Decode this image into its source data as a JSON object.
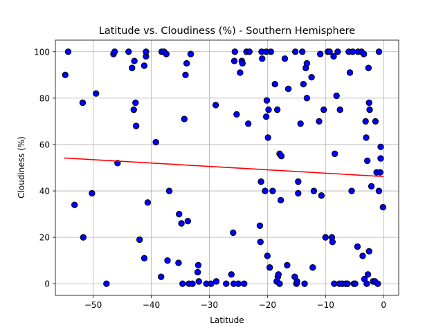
{
  "chart_data": {
    "type": "scatter",
    "title": "Latitude vs. Cloudiness (%) - Southern Hemisphere",
    "xlabel": "Latitude",
    "ylabel": "Cloudiness (%)",
    "xlim": [
      -56.5,
      2.6
    ],
    "ylim": [
      -5,
      105
    ],
    "xticks": [
      -50,
      -40,
      -30,
      -20,
      -10,
      0
    ],
    "yticks": [
      0,
      20,
      40,
      60,
      80,
      100
    ],
    "xtick_labels": [
      "−50",
      "−40",
      "−30",
      "−20",
      "−10",
      "0"
    ],
    "ytick_labels": [
      "0",
      "20",
      "40",
      "60",
      "80",
      "100"
    ],
    "grid": true,
    "colors": {
      "point_fill": "#0000ff",
      "point_edge": "#000000",
      "regression": "#ff0000"
    },
    "series": [
      {
        "points": [
          [
            -54.8,
            90
          ],
          [
            -54.3,
            100
          ],
          [
            -53.2,
            34
          ],
          [
            -51.8,
            78
          ],
          [
            -51.7,
            20
          ],
          [
            -50.2,
            39
          ],
          [
            -49.5,
            82
          ],
          [
            -47.7,
            0
          ],
          [
            -46.5,
            99
          ],
          [
            -46.3,
            100
          ],
          [
            -45.8,
            52
          ],
          [
            -43.9,
            100
          ],
          [
            -43.3,
            93
          ],
          [
            -43.0,
            75
          ],
          [
            -42.9,
            96
          ],
          [
            -42.7,
            78
          ],
          [
            -42.6,
            68
          ],
          [
            -42.0,
            19
          ],
          [
            -41.2,
            94
          ],
          [
            -41.2,
            11
          ],
          [
            -40.9,
            98
          ],
          [
            -40.9,
            100
          ],
          [
            -40.6,
            35
          ],
          [
            -39.2,
            61
          ],
          [
            -38.3,
            3
          ],
          [
            -38.2,
            100
          ],
          [
            -37.8,
            100
          ],
          [
            -37.4,
            99
          ],
          [
            -37.2,
            10
          ],
          [
            -36.9,
            40
          ],
          [
            -35.3,
            9
          ],
          [
            -35.2,
            30
          ],
          [
            -34.8,
            26
          ],
          [
            -34.6,
            0
          ],
          [
            -34.3,
            71
          ],
          [
            -34.1,
            90
          ],
          [
            -33.9,
            95
          ],
          [
            -33.7,
            27
          ],
          [
            -33.5,
            0
          ],
          [
            -33.2,
            99
          ],
          [
            -32.9,
            0
          ],
          [
            -32.0,
            5
          ],
          [
            -31.9,
            8
          ],
          [
            -31.8,
            1
          ],
          [
            -30.5,
            0
          ],
          [
            -29.7,
            0
          ],
          [
            -28.9,
            77
          ],
          [
            -28.8,
            1
          ],
          [
            -27.1,
            0
          ],
          [
            -26.2,
            4
          ],
          [
            -25.9,
            22
          ],
          [
            -25.8,
            0
          ],
          [
            -25.7,
            96
          ],
          [
            -25.6,
            100
          ],
          [
            -25.3,
            73
          ],
          [
            -25.0,
            0
          ],
          [
            -24.7,
            91
          ],
          [
            -24.4,
            96
          ],
          [
            -24.3,
            95
          ],
          [
            -24.0,
            0
          ],
          [
            -23.6,
            100
          ],
          [
            -23.3,
            69
          ],
          [
            -23.1,
            100
          ],
          [
            -21.3,
            25
          ],
          [
            -21.2,
            18
          ],
          [
            -21.1,
            44
          ],
          [
            -21.0,
            100
          ],
          [
            -20.9,
            97
          ],
          [
            -20.4,
            40
          ],
          [
            -20.2,
            100
          ],
          [
            -20.2,
            72
          ],
          [
            -20.1,
            79
          ],
          [
            -20.0,
            12
          ],
          [
            -19.9,
            63
          ],
          [
            -19.8,
            75
          ],
          [
            -19.6,
            7
          ],
          [
            -19.4,
            100
          ],
          [
            -19.1,
            40
          ],
          [
            -18.7,
            86
          ],
          [
            -18.4,
            1
          ],
          [
            -18.3,
            75
          ],
          [
            -18.2,
            3
          ],
          [
            -18.1,
            4
          ],
          [
            -17.9,
            56
          ],
          [
            -17.9,
            0
          ],
          [
            -17.7,
            36
          ],
          [
            -17.6,
            55
          ],
          [
            -17.0,
            97
          ],
          [
            -16.6,
            8
          ],
          [
            -16.4,
            84
          ],
          [
            -15.3,
            3
          ],
          [
            -15.2,
            100
          ],
          [
            -15.0,
            0
          ],
          [
            -14.9,
            1
          ],
          [
            -14.7,
            39
          ],
          [
            -14.7,
            44
          ],
          [
            -14.3,
            69
          ],
          [
            -14.0,
            100
          ],
          [
            -13.8,
            86
          ],
          [
            -13.6,
            0
          ],
          [
            -13.4,
            93
          ],
          [
            -13.2,
            95
          ],
          [
            -13.2,
            80
          ],
          [
            -12.4,
            89
          ],
          [
            -12.2,
            7
          ],
          [
            -12.0,
            40
          ],
          [
            -11.1,
            70
          ],
          [
            -10.9,
            99
          ],
          [
            -10.7,
            38
          ],
          [
            -10.3,
            75
          ],
          [
            -10.0,
            20
          ],
          [
            -9.6,
            100
          ],
          [
            -9.3,
            100
          ],
          [
            -8.9,
            20
          ],
          [
            -8.8,
            18
          ],
          [
            -8.6,
            98
          ],
          [
            -8.5,
            0
          ],
          [
            -8.4,
            56
          ],
          [
            -8.1,
            81
          ],
          [
            -7.9,
            100
          ],
          [
            -7.6,
            0
          ],
          [
            -7.5,
            75
          ],
          [
            -7.1,
            0
          ],
          [
            -6.5,
            0
          ],
          [
            -6.2,
            0
          ],
          [
            -6.0,
            100
          ],
          [
            -5.8,
            91
          ],
          [
            -5.5,
            40
          ],
          [
            -5.3,
            100
          ],
          [
            -5.1,
            0
          ],
          [
            -4.9,
            0
          ],
          [
            -4.5,
            16
          ],
          [
            -4.4,
            100
          ],
          [
            -3.8,
            100
          ],
          [
            -3.6,
            12
          ],
          [
            -3.4,
            99
          ],
          [
            -3.3,
            2
          ],
          [
            -3.1,
            70
          ],
          [
            -3.0,
            63
          ],
          [
            -2.9,
            0
          ],
          [
            -2.8,
            53
          ],
          [
            -2.7,
            4
          ],
          [
            -2.6,
            93
          ],
          [
            -2.5,
            78
          ],
          [
            -2.5,
            14
          ],
          [
            -2.4,
            75
          ],
          [
            -2.1,
            42
          ],
          [
            -1.8,
            1
          ],
          [
            -1.5,
            1
          ],
          [
            -1.4,
            70
          ],
          [
            -1.2,
            48
          ],
          [
            -1.0,
            0
          ],
          [
            -0.8,
            40
          ],
          [
            -0.8,
            100
          ],
          [
            -0.6,
            48
          ],
          [
            -0.5,
            59
          ],
          [
            -0.5,
            54
          ],
          [
            -0.1,
            33
          ]
        ]
      }
    ],
    "regression": {
      "x": [
        -55.0,
        0.0
      ],
      "y": [
        54.2,
        46.2
      ]
    }
  }
}
